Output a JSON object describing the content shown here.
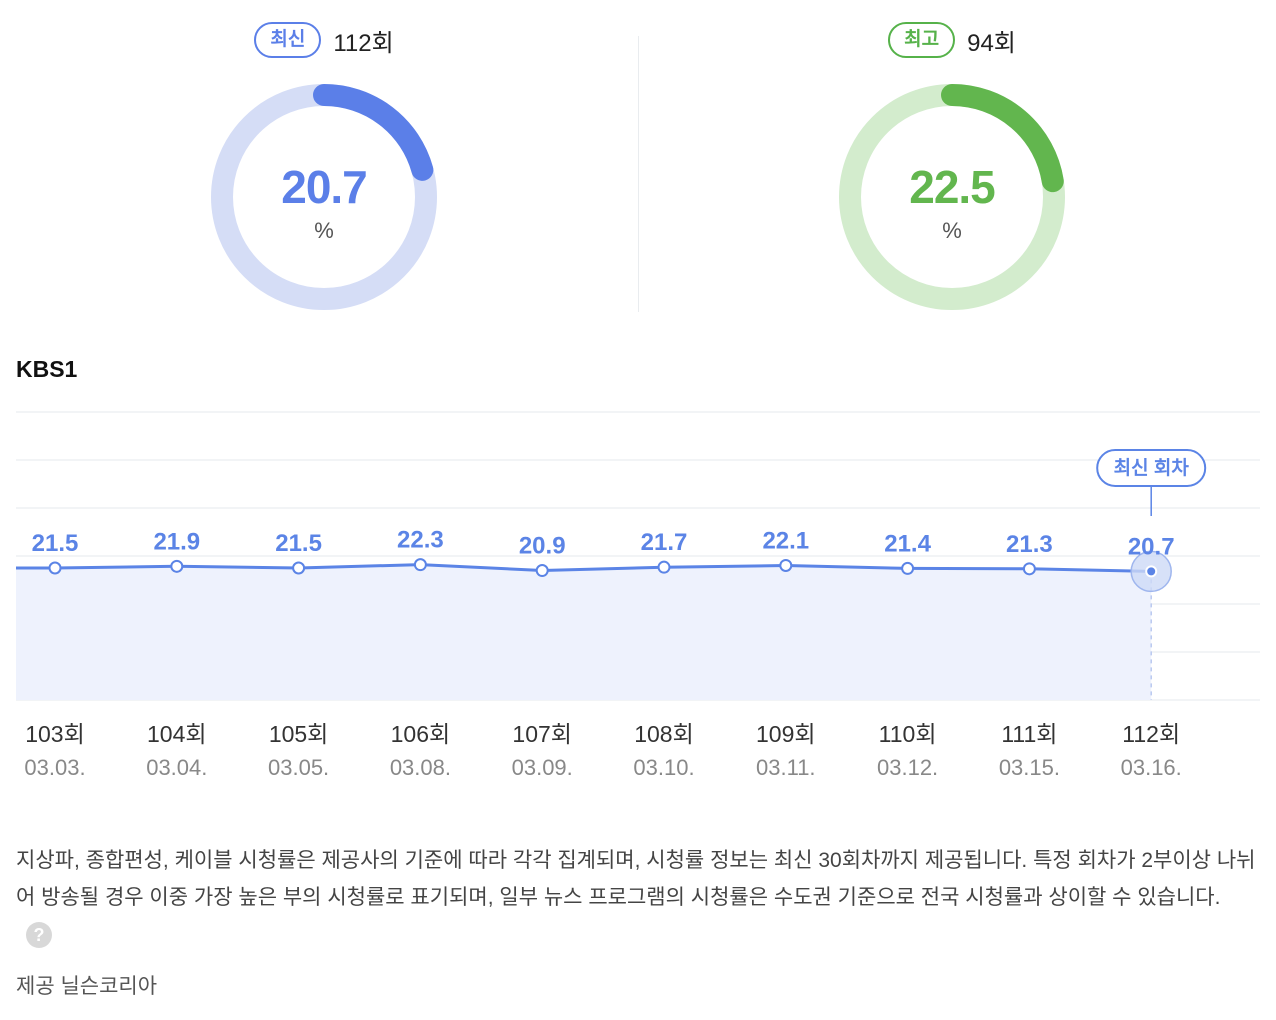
{
  "latest": {
    "badge": "최신",
    "episode": "112회",
    "value": "20.7",
    "unit": "%",
    "fraction": 0.207,
    "color": "#5b7fe8",
    "track": "#d5ddf6"
  },
  "best": {
    "badge": "최고",
    "episode": "94회",
    "value": "22.5",
    "unit": "%",
    "fraction": 0.225,
    "color": "#62b64e",
    "track": "#d3eccd"
  },
  "channel": "KBS1",
  "chart_data": {
    "type": "line",
    "categories": [
      "103회",
      "104회",
      "105회",
      "106회",
      "107회",
      "108회",
      "109회",
      "110회",
      "111회",
      "112회"
    ],
    "dates": [
      "03.03.",
      "03.04.",
      "03.05.",
      "03.08.",
      "03.09.",
      "03.10.",
      "03.11.",
      "03.12.",
      "03.15.",
      "03.16."
    ],
    "values": [
      21.5,
      21.9,
      21.5,
      22.3,
      20.9,
      21.7,
      22.1,
      21.4,
      21.3,
      20.7
    ],
    "value_labels": [
      "21.5",
      "21.9",
      "21.5",
      "22.3",
      "20.9",
      "21.7",
      "22.1",
      "21.4",
      "21.3",
      "20.7"
    ],
    "latest_marker": "최신 회차",
    "line_color": "#5b84e6",
    "fill_color": "#eef2fd"
  },
  "notice": "지상파, 종합편성, 케이블 시청률은 제공사의 기준에 따라 각각 집계되며, 시청률 정보는 최신 30회차까지 제공됩니다. 특정 회차가 2부이상 나뉘어 방송될 경우 이중 가장 높은 부의 시청률로 표기되며, 일부 뉴스 프로그램의 시청률은 수도권 기준으로 전국 시청률과 상이할 수 있습니다.",
  "help_icon": "?",
  "source": "제공 닐슨코리아"
}
